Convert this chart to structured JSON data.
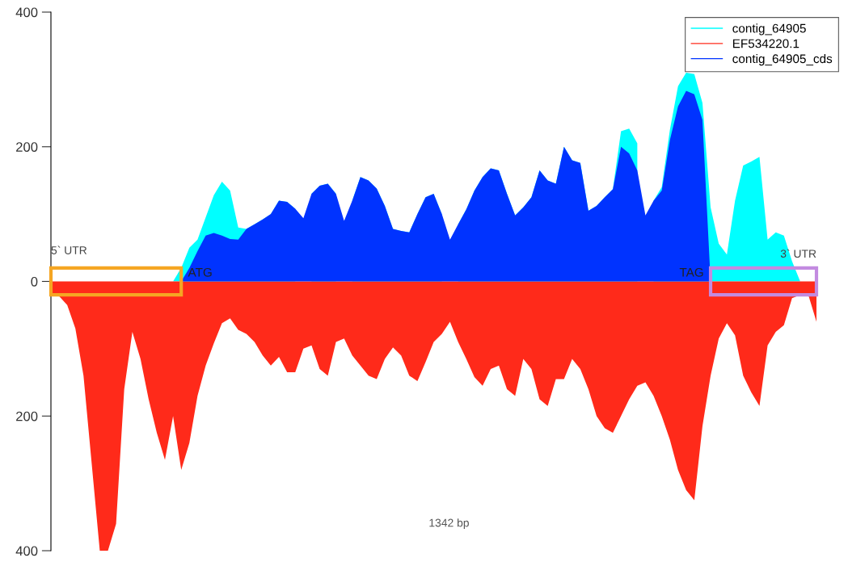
{
  "chart_data": {
    "type": "area",
    "xlabel": "1342 bp",
    "categories": [
      null,
      null,
      null,
      null,
      null,
      null,
      null,
      null,
      null,
      null,
      null,
      null,
      null,
      null,
      null,
      null,
      null,
      null,
      null,
      null,
      null,
      null,
      null,
      null,
      null,
      null,
      null,
      null,
      null,
      null,
      null,
      null,
      null,
      null,
      null,
      null,
      null,
      null,
      null,
      null,
      null,
      null,
      null,
      null,
      null,
      null,
      null,
      null,
      null,
      null,
      null,
      null,
      null,
      null,
      null,
      null,
      null,
      null,
      null,
      null,
      null,
      null,
      null,
      null,
      null,
      null,
      null,
      null,
      null,
      null,
      null,
      null,
      null,
      null,
      null,
      null,
      null,
      null,
      null,
      null,
      null,
      null,
      null,
      null,
      null,
      null,
      null,
      null,
      null,
      null,
      null,
      null,
      null,
      null,
      null
    ],
    "ylim": [
      -400,
      400
    ],
    "yticks": [
      {
        "value": -400,
        "label": "400"
      },
      {
        "value": -200,
        "label": "200"
      },
      0,
      200,
      400
    ],
    "tick_labels": "y",
    "legend": "top right",
    "series": [
      {
        "name": "contig_64905",
        "color": "#00ffff",
        "values": [
          null,
          null,
          null,
          null,
          null,
          null,
          null,
          null,
          null,
          null,
          null,
          null,
          null,
          null,
          null,
          0,
          20,
          50,
          62,
          95,
          128,
          148,
          135,
          80,
          78,
          85,
          92,
          100,
          120,
          118,
          108,
          null,
          130,
          142,
          145,
          130,
          null,
          120,
          155,
          150,
          138,
          112,
          78,
          75,
          73,
          100,
          125,
          130,
          100,
          null,
          85,
          107,
          135,
          155,
          168,
          165,
          130,
          98,
          110,
          125,
          165,
          150,
          145,
          200,
          180,
          176,
          105,
          112,
          125,
          137,
          223,
          227,
          205,
          null,
          120,
          140,
          225,
          290,
          310,
          308,
          265,
          110,
          56,
          40,
          120,
          172,
          178,
          185,
          62,
          73,
          68,
          30,
          0,
          null,
          null
        ]
      },
      {
        "name": "EF534220.1",
        "color": "#ff2a1a",
        "values": [
          -20,
          -22,
          -35,
          -70,
          -140,
          -270,
          -400,
          -400,
          -360,
          -160,
          -75,
          -115,
          -175,
          -225,
          -265,
          -200,
          -280,
          -240,
          -170,
          -125,
          -92,
          -62,
          -55,
          -72,
          -78,
          -90,
          -110,
          -125,
          -112,
          -135,
          -135,
          -100,
          -95,
          -130,
          -140,
          -90,
          -85,
          -110,
          -125,
          -140,
          -145,
          -115,
          -98,
          -110,
          -140,
          -148,
          -120,
          -90,
          -78,
          -60,
          -90,
          -115,
          -142,
          -155,
          -130,
          -125,
          -160,
          -170,
          -115,
          -130,
          -175,
          -185,
          -145,
          -145,
          -115,
          -130,
          -160,
          -200,
          -218,
          -225,
          -200,
          -175,
          -155,
          -150,
          -170,
          -200,
          -235,
          -280,
          -310,
          -325,
          -215,
          -140,
          -85,
          -62,
          -80,
          -140,
          -165,
          -185,
          -95,
          -75,
          -65,
          -25,
          -20,
          -20,
          -60
        ]
      },
      {
        "name": "contig_64905_cds",
        "color": "#0033ff",
        "values": [
          null,
          null,
          null,
          null,
          null,
          null,
          null,
          null,
          null,
          null,
          null,
          null,
          null,
          null,
          null,
          null,
          0,
          20,
          45,
          68,
          72,
          68,
          63,
          62,
          78,
          85,
          92,
          100,
          120,
          118,
          108,
          94,
          130,
          142,
          145,
          130,
          90,
          120,
          155,
          150,
          138,
          112,
          78,
          75,
          73,
          100,
          125,
          130,
          100,
          62,
          85,
          107,
          135,
          155,
          168,
          165,
          130,
          98,
          110,
          125,
          165,
          150,
          145,
          200,
          180,
          176,
          105,
          112,
          125,
          137,
          200,
          190,
          165,
          98,
          120,
          135,
          210,
          260,
          283,
          278,
          240,
          0,
          null,
          null,
          null,
          null,
          null,
          null,
          null,
          null,
          null,
          null,
          null,
          null,
          null
        ]
      }
    ],
    "annotations": [
      "5` UTR",
      "ATG",
      "TAG",
      "3` UTR"
    ]
  }
}
